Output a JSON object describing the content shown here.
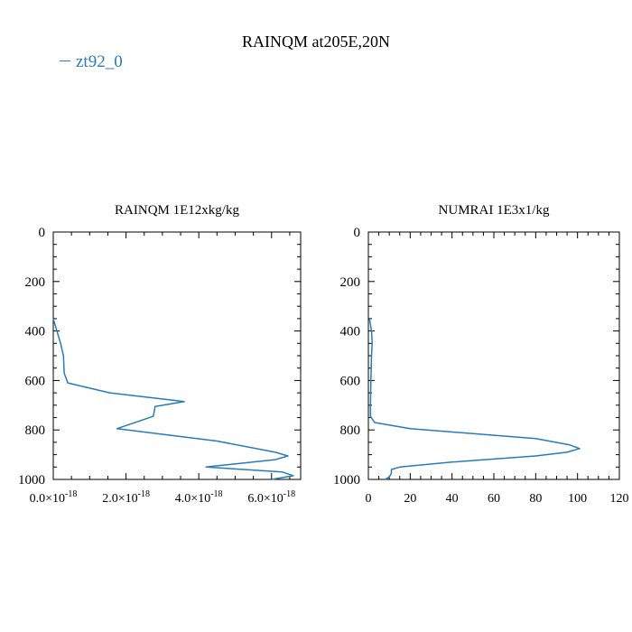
{
  "title": "RAINQM at205E,20N",
  "legend": {
    "label": "zt92_0",
    "color": "#2a7ab8"
  },
  "chart_data": [
    {
      "type": "line",
      "title": "RAINQM  1E12xkg/kg",
      "xlim": [
        0,
        6.8e-18
      ],
      "ylim": [
        1000,
        0
      ],
      "y_inverted": true,
      "y_ticks": [
        0,
        200,
        400,
        600,
        800,
        1000
      ],
      "y_tick_labels": [
        "0",
        "200",
        "400",
        "600",
        "800",
        "1000"
      ],
      "x_ticks": [
        0,
        2e-18,
        4e-18,
        6e-18
      ],
      "x_tick_labels": [
        {
          "mant": "0.0×10",
          "exp": "-18"
        },
        {
          "mant": "2.0×10",
          "exp": "-18"
        },
        {
          "mant": "4.0×10",
          "exp": "-18"
        },
        {
          "mant": "6.0×10",
          "exp": "-18"
        }
      ],
      "series": [
        {
          "color": "#2a7ab8",
          "x": [
            0,
            1e-19,
            2e-19,
            2.8e-19,
            3e-19,
            4e-19,
            1.55e-18,
            3.6e-18,
            2.8e-18,
            2.75e-18,
            1.75e-18,
            4.5e-18,
            6.1e-18,
            6.45e-18,
            6.1e-18,
            4.2e-18,
            6.3e-18,
            6.6e-18,
            6e-18
          ],
          "y": [
            350,
            400,
            450,
            500,
            570,
            610,
            650,
            685,
            705,
            745,
            795,
            845,
            890,
            905,
            920,
            950,
            970,
            985,
            1000
          ]
        }
      ]
    },
    {
      "type": "line",
      "title": "NUMRAI  1E3x1/kg",
      "xlim": [
        0,
        120
      ],
      "ylim": [
        1000,
        0
      ],
      "y_inverted": true,
      "y_ticks": [
        0,
        200,
        400,
        600,
        800,
        1000
      ],
      "y_tick_labels": [
        "0",
        "200",
        "400",
        "600",
        "800",
        "1000"
      ],
      "x_ticks": [
        0,
        20,
        40,
        60,
        80,
        100,
        120
      ],
      "x_tick_labels": [
        "0",
        "20",
        "40",
        "60",
        "80",
        "100",
        "120"
      ],
      "series": [
        {
          "color": "#2a7ab8",
          "x": [
            0.5,
            1.5,
            1.8,
            1.5,
            1.2,
            1.0,
            1.0,
            3,
            20,
            80,
            96,
            101,
            95,
            80,
            40,
            15,
            11,
            11,
            10,
            8
          ],
          "y": [
            350,
            400,
            450,
            500,
            600,
            700,
            745,
            770,
            795,
            835,
            860,
            875,
            890,
            905,
            930,
            950,
            960,
            975,
            990,
            1000
          ]
        }
      ]
    }
  ]
}
